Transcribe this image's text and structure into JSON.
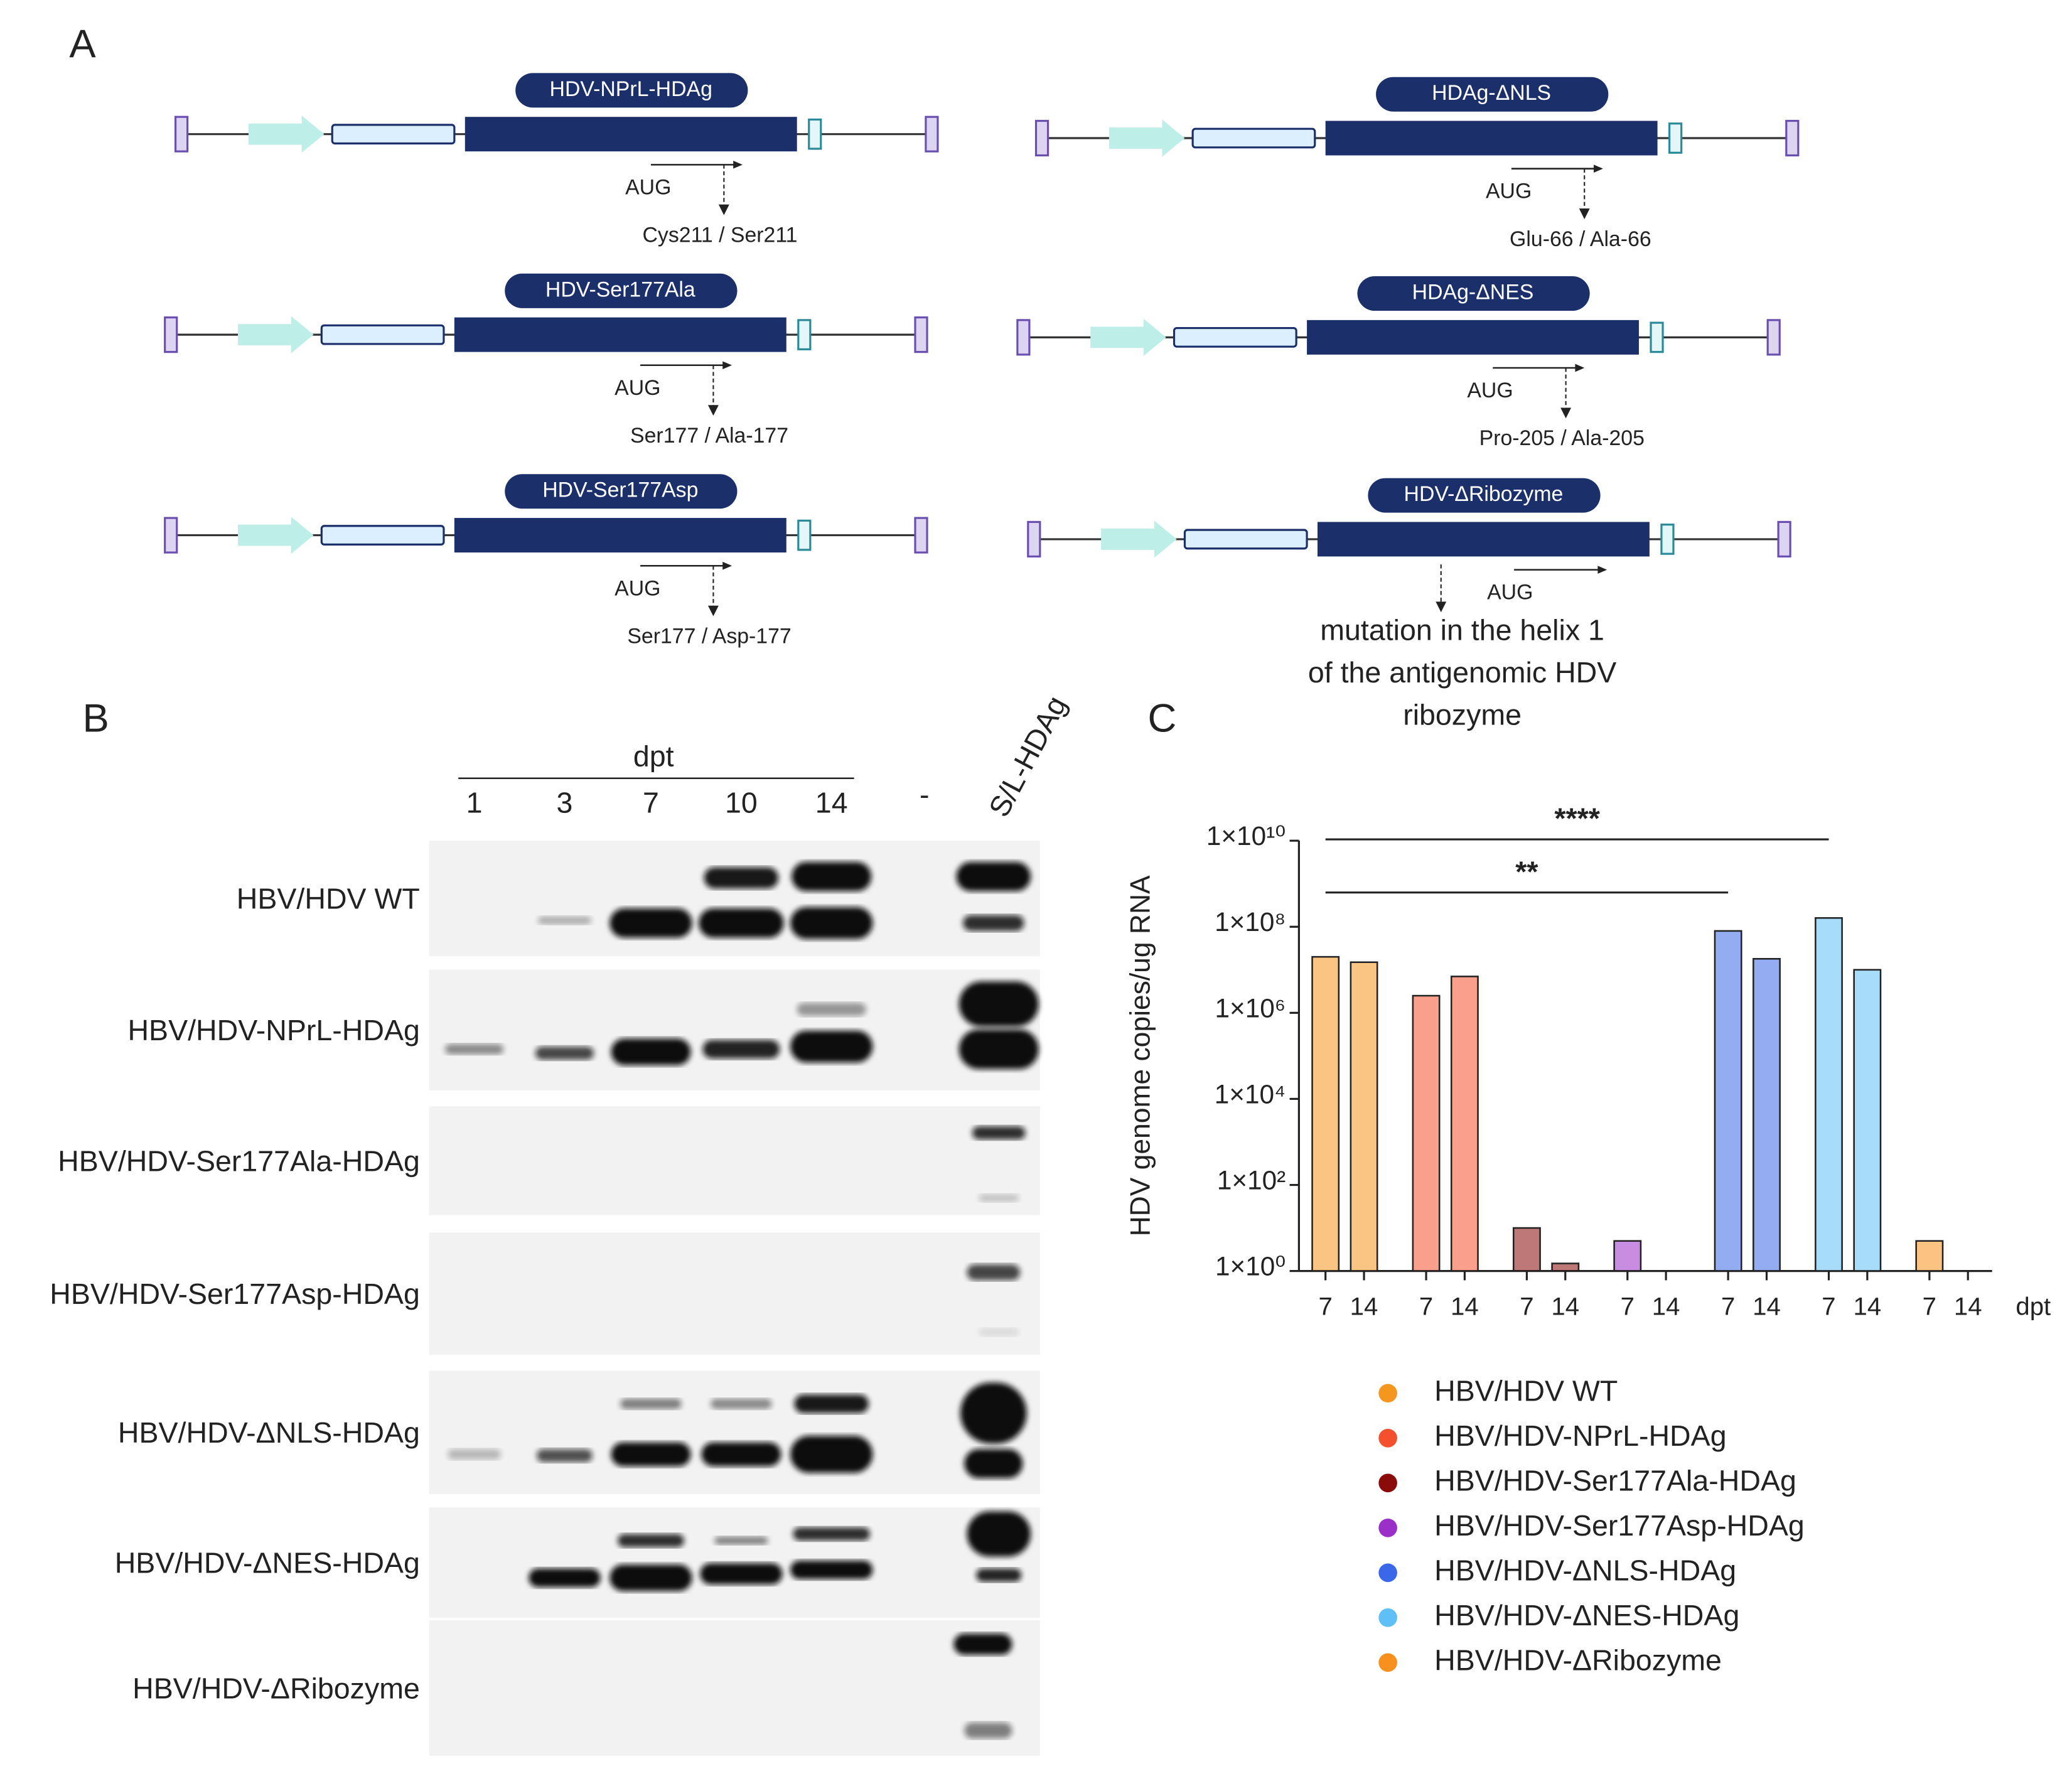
{
  "panel_a": {
    "label": "A",
    "constructs": [
      {
        "name": "HDV-NPrL-HDAg",
        "start": "AUG",
        "mutation": "Cys211 / Ser211"
      },
      {
        "name": "HDV-Ser177Ala",
        "start": "AUG",
        "mutation": "Ser177 / Ala-177"
      },
      {
        "name": "HDV-Ser177Asp",
        "start": "AUG",
        "mutation": "Ser177 / Asp-177"
      },
      {
        "name": "HDAg-ΔNLS",
        "start": "AUG",
        "mutation": "Glu-66 / Ala-66"
      },
      {
        "name": "HDAg-ΔNES",
        "start": "AUG",
        "mutation": "Pro-205 / Ala-205"
      },
      {
        "name": "HDV-ΔRibozyme",
        "start": "AUG",
        "mutation": [
          "mutation in the helix 1",
          "of the antigenomic HDV",
          "ribozyme"
        ]
      }
    ]
  },
  "panel_b": {
    "label": "B",
    "group_label": "dpt",
    "lanes": [
      "1",
      "3",
      "7",
      "10",
      "14",
      "-",
      "S/L-HDAg"
    ],
    "rows": [
      "HBV/HDV WT",
      "HBV/HDV-NPrL-HDAg",
      "HBV/HDV-Ser177Ala-HDAg",
      "HBV/HDV-Ser177Asp-HDAg",
      "HBV/HDV-ΔNLS-HDAg",
      "HBV/HDV-ΔNES-HDAg",
      "HBV/HDV-ΔRibozyme"
    ]
  },
  "chart_data": {
    "label": "C",
    "type": "bar",
    "ylabel": "HDV genome copies/ug RNA",
    "xlabel": "dpt",
    "categories": [
      "7",
      "14",
      "7",
      "14",
      "7",
      "14",
      "7",
      "14",
      "7",
      "14",
      "7",
      "14",
      "7",
      "14"
    ],
    "ylog": true,
    "ylim": [
      1,
      10000000000
    ],
    "yticks": [
      {
        "value": 1,
        "label": "1×10⁰"
      },
      {
        "value": 100,
        "label": "1×10²"
      },
      {
        "value": 10000,
        "label": "1×10⁴"
      },
      {
        "value": 1000000,
        "label": "1×10⁶"
      },
      {
        "value": 100000000,
        "label": "1×10⁸"
      },
      {
        "value": 10000000000,
        "label": "1×10¹⁰"
      }
    ],
    "series": [
      {
        "name": "HBV/HDV WT",
        "color": "#f5961e",
        "values": [
          20000000,
          15000000,
          null,
          null,
          null,
          null,
          null,
          null,
          null,
          null,
          null,
          null,
          null,
          null
        ]
      },
      {
        "name": "HBV/HDV-NPrL-HDAg",
        "color": "#f4502e",
        "values": [
          null,
          null,
          2500000,
          7000000,
          null,
          null,
          null,
          null,
          null,
          null,
          null,
          null,
          null,
          null
        ]
      },
      {
        "name": "HBV/HDV-Ser177Ala-HDAg",
        "color": "#8b0a0a",
        "values": [
          null,
          null,
          null,
          null,
          10,
          1.5,
          null,
          null,
          null,
          null,
          null,
          null,
          null,
          null
        ]
      },
      {
        "name": "HBV/HDV-Ser177Asp-HDAg",
        "color": "#9a30c8",
        "values": [
          null,
          null,
          null,
          null,
          null,
          null,
          5,
          null,
          null,
          null,
          null,
          null,
          null,
          null
        ]
      },
      {
        "name": "HBV/HDV-ΔNLS-HDAg",
        "color": "#3a68e8",
        "values": [
          null,
          null,
          null,
          null,
          null,
          null,
          null,
          null,
          80000000,
          18000000,
          null,
          null,
          null,
          null
        ]
      },
      {
        "name": "HBV/HDV-ΔNES-HDAg",
        "color": "#5ec0f6",
        "values": [
          null,
          null,
          null,
          null,
          null,
          null,
          null,
          null,
          null,
          null,
          160000000,
          10000000,
          null,
          null
        ]
      },
      {
        "name": "HBV/HDV-ΔRibozyme",
        "color": "#f7901c",
        "values": [
          null,
          null,
          null,
          null,
          null,
          null,
          null,
          null,
          null,
          null,
          null,
          null,
          5,
          null
        ]
      }
    ],
    "annotations": [
      "****",
      "**"
    ]
  }
}
